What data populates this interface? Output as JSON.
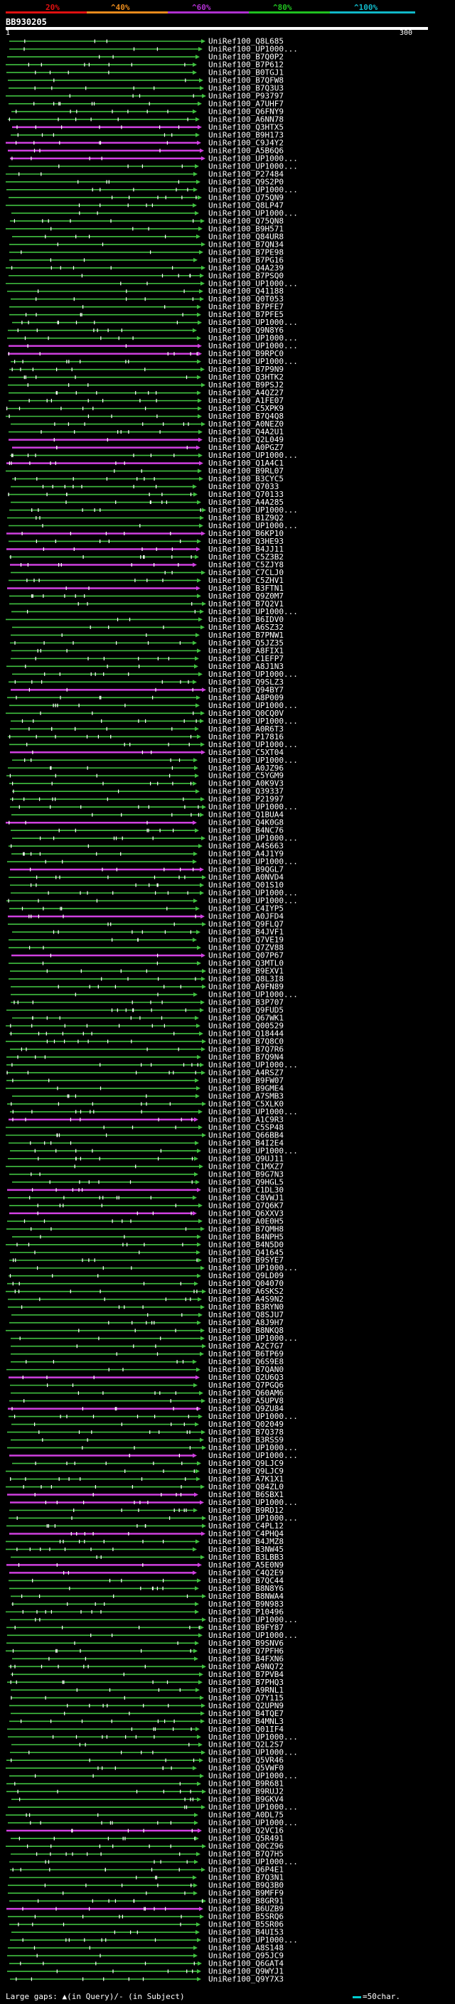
{
  "query": {
    "title": "BB930205",
    "scale_start": "1",
    "scale_end": "300"
  },
  "legend": {
    "labels": [
      "20%",
      "^40%",
      "^60%",
      "^80%",
      "^100%"
    ],
    "colors": [
      "#e01010",
      "#e88a1c",
      "#b030d0",
      "#20c020",
      "#10b8c8"
    ]
  },
  "footer": {
    "left": "Large gaps: ▲(in Query)/- (in Subject)",
    "right": "=50char."
  },
  "hits": [
    "UniRef100_Q8L685",
    "UniRef100_UP1000...",
    "UniRef100_B7Q0P2",
    "UniRef100_B7P612",
    "UniRef100_B0TGJ1",
    "UniRef100_B7QFW8",
    "UniRef100_B7Q3U3",
    "UniRef100_P93797",
    "UniRef100_A7UHF7",
    "UniRef100_Q6FNY9",
    "UniRef100_A6NN78",
    "UniRef100_Q3HTX5",
    "UniRef100_B9H173",
    "UniRef100_C9J4Y2",
    "UniRef100_A5B6Q6",
    "UniRef100_UP1000...",
    "UniRef100_UP1000...",
    "UniRef100_P27484",
    "UniRef100_Q9S2P0",
    "UniRef100_UP1000...",
    "UniRef100_Q75QN9",
    "UniRef100_Q8LP47",
    "UniRef100_UP1000...",
    "UniRef100_Q75QN8",
    "UniRef100_B9H571",
    "UniRef100_Q84UR8",
    "UniRef100_B7QN34",
    "UniRef100_B7PE98",
    "UniRef100_B7PG16",
    "UniRef100_Q4A239",
    "UniRef100_B7PSQ0",
    "UniRef100_UP1000...",
    "UniRef100_Q41188",
    "UniRef100_Q0T053",
    "UniRef100_B7PFE7",
    "UniRef100_B7PFE5",
    "UniRef100_UP1000...",
    "UniRef100_Q9N8Y6",
    "UniRef100_UP1000...",
    "UniRef100_UP1000...",
    "UniRef100_B9RPC0",
    "UniRef100_UP1000...",
    "UniRef100_B7P9N9",
    "UniRef100_Q3HTK2",
    "UniRef100_B9PSJ2",
    "UniRef100_A4QZ27",
    "UniRef100_A1FE07",
    "UniRef100_C5XPK9",
    "UniRef100_B7Q4Q8",
    "UniRef100_A0NEZ0",
    "UniRef100_Q4A2U1",
    "UniRef100_Q2L049",
    "UniRef100_A0PGZ7",
    "UniRef100_UP1000...",
    "UniRef100_Q1A4C1",
    "UniRef100_B9RL07",
    "UniRef100_B3CYC5",
    "UniRef100_Q7033",
    "UniRef100_Q70133",
    "UniRef100_A4A285",
    "UniRef100_UP1000...",
    "UniRef100_B1Z9Q2",
    "UniRef100_UP1000...",
    "UniRef100_B6KP10",
    "UniRef100_Q3HE93",
    "UniRef100_B4JJ11",
    "UniRef100_C5Z3B2",
    "UniRef100_C5ZJY8",
    "UniRef100_C7CLJ0",
    "UniRef100_C5ZHV1",
    "UniRef100_B3FTN1",
    "UniRef100_Q9Z0M7",
    "UniRef100_B7Q2V1",
    "UniRef100_UP1000...",
    "UniRef100_B6IDV0",
    "UniRef100_A6SZ32",
    "UniRef100_B7PNW1",
    "UniRef100_Q5JZ35",
    "UniRef100_A8FIX1",
    "UniRef100_C1EFP7",
    "UniRef100_A8J1N3",
    "UniRef100_UP1000...",
    "UniRef100_Q9SLZ3",
    "UniRef100_Q94BY7",
    "UniRef100_A8P009",
    "UniRef100_UP1000...",
    "UniRef100_Q0CQ0V",
    "UniRef100_UP1000...",
    "UniRef100_A0R6T3",
    "UniRef100_P17816",
    "UniRef100_UP1000...",
    "UniRef100_C5XT04",
    "UniRef100_UP1000...",
    "UniRef100_A0JZ96",
    "UniRef100_C5YGM9",
    "UniRef100_A0K9V3",
    "UniRef100_Q39337",
    "UniRef100_P21997",
    "UniRef100_UP1000...",
    "UniRef100_Q1BUA4",
    "UniRef100_Q4K0G8",
    "UniRef100_B4NC76",
    "UniRef100_UP1000...",
    "UniRef100_A4S663",
    "UniRef100_A4J1Y9",
    "UniRef100_UP1000...",
    "UniRef100_B9QGL7",
    "UniRef100_A0NVD4",
    "UniRef100_Q01S10",
    "UniRef100_UP1000...",
    "UniRef100_UP1000...",
    "UniRef100_C4IYP5",
    "UniRef100_A0JFD4",
    "UniRef100_Q9FLQ7",
    "UniRef100_B4JVF1",
    "UniRef100_Q7VE19",
    "UniRef100_Q7ZV88",
    "UniRef100_Q07P67",
    "UniRef100_Q3MTL0",
    "UniRef100_B9EXV1",
    "UniRef100_Q8L3I8",
    "UniRef100_A9FN89",
    "UniRef100_UP1000...",
    "UniRef100_B3P707",
    "UniRef100_Q9FUD5",
    "UniRef100_Q67WK1",
    "UniRef100_Q00529",
    "UniRef100_Q18444",
    "UniRef100_B7Q8C0",
    "UniRef100_B7Q7R6",
    "UniRef100_B7Q9N4",
    "UniRef100_UP1000...",
    "UniRef100_A4RSZ7",
    "UniRef100_B9FW07",
    "UniRef100_B9GME4",
    "UniRef100_A7SMB3",
    "UniRef100_C5XLK0",
    "UniRef100_UP1000...",
    "UniRef100_A1C9R3",
    "UniRef100_C5SP48",
    "UniRef100_Q66BB4",
    "UniRef100_B4I2E4",
    "UniRef100_UP1000...",
    "UniRef100_Q9UJ11",
    "UniRef100_C1MXZ7",
    "UniRef100_B9G7N3",
    "UniRef100_Q9HGL5",
    "UniRef100_C1DL30",
    "UniRef100_C8VWJ1",
    "UniRef100_Q7Q6K7",
    "UniRef100_Q6XXV3",
    "UniRef100_A0E0H5",
    "UniRef100_B7QMH8",
    "UniRef100_B4NPH5",
    "UniRef100_B4N5D0",
    "UniRef100_Q41645",
    "UniRef100_B9SYE7",
    "UniRef100_UP1000...",
    "UniRef100_Q9LD09",
    "UniRef100_Q04070",
    "UniRef100_A6SKS2",
    "UniRef100_A4S9N2",
    "UniRef100_B3RYN0",
    "UniRef100_Q8SJU7",
    "UniRef100_A8J9H7",
    "UniRef100_B8NKQ8",
    "UniRef100_UP1000...",
    "UniRef100_A2C7G7",
    "UniRef100_B6TP69",
    "UniRef100_Q6S9E8",
    "UniRef100_B7QAN0",
    "UniRef100_Q2U6Q3",
    "UniRef100_Q7PGQ6",
    "UniRef100_Q60AM6",
    "UniRef100_A5UPV8",
    "UniRef100_Q9ZU84",
    "UniRef100_UP1000...",
    "UniRef100_Q02049",
    "UniRef100_B7Q378",
    "UniRef100_B3RSS9",
    "UniRef100_UP1000...",
    "UniRef100_UP1000...",
    "UniRef100_Q9LJC9",
    "UniRef100_Q9LJC9",
    "UniRef100_A7K1X1",
    "UniRef100_Q84ZL0",
    "UniRef100_B6SBX1",
    "UniRef100_UP1000...",
    "UniRef100_B9RD12",
    "UniRef100_UP1000...",
    "UniRef100_C4PL12",
    "UniRef100_C4PHQ4",
    "UniRef100_B4JMZ8",
    "UniRef100_B3NW45",
    "UniRef100_B3LBB3",
    "UniRef100_A5E0N9",
    "UniRef100_C4Q2E9",
    "UniRef100_B7QC44",
    "UniRef100_B8N8Y6",
    "UniRef100_B8NWA4",
    "UniRef100_B9N983",
    "UniRef100_P10496",
    "UniRef100_UP1000...",
    "UniRef100_B9FY87",
    "UniRef100_UP1000...",
    "UniRef100_B9SNV6",
    "UniRef100_Q7PFH6",
    "UniRef100_B4FXN6",
    "UniRef100_A9NQ72",
    "UniRef100_B7PVB4",
    "UniRef100_B7PHQ3",
    "UniRef100_A9RNL1",
    "UniRef100_Q7Y115",
    "UniRef100_Q2UPN9",
    "UniRef100_B4TQE7",
    "UniRef100_B4MNL3",
    "UniRef100_Q01IF4",
    "UniRef100_UP1000...",
    "UniRef100_Q2L2S7",
    "UniRef100_UP1000...",
    "UniRef100_Q5VR46",
    "UniRef100_Q5VWF0",
    "UniRef100_UP1000...",
    "UniRef100_B9R681",
    "UniRef100_B9RUJ2",
    "UniRef100_B9GKV4",
    "UniRef100_UP1000...",
    "UniRef100_A0DL75",
    "UniRef100_UP1000...",
    "UniRef100_Q2VC16",
    "UniRef100_Q5R491",
    "UniRef100_Q0CZ96",
    "UniRef100_B7Q7H5",
    "UniRef100_UP1000...",
    "UniRef100_Q6P4E1",
    "UniRef100_B7Q3N1",
    "UniRef100_B9Q3B0",
    "UniRef100_B9MFF9",
    "UniRef100_B8GR91",
    "UniRef100_B6UZB9",
    "UniRef100_B5SRQ6",
    "UniRef100_B5SR06",
    "UniRef100_B4UI53",
    "UniRef100_UP1000...",
    "UniRef100_A8S148",
    "UniRef100_Q95JC9",
    "UniRef100_Q6GAT4",
    "UniRef100_Q9WYJ1",
    "UniRef100_Q9Y7X3"
  ]
}
